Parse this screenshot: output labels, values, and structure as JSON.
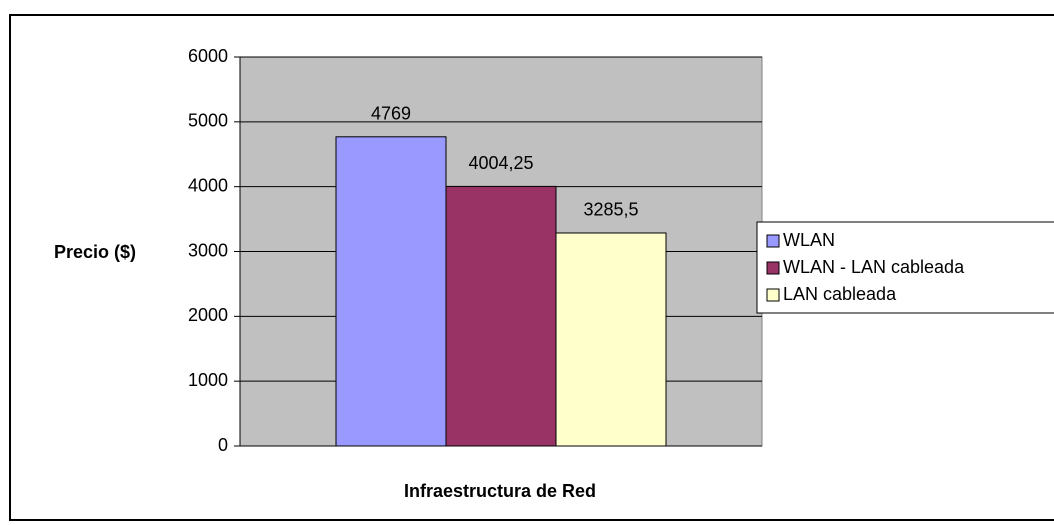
{
  "chart_data": {
    "type": "bar",
    "x_label": "Infraestructura de Red",
    "y_label": "Precio ($)",
    "categories": [
      null
    ],
    "series": [
      {
        "name": "WLAN",
        "color": "#9999ff",
        "values": [
          4769
        ]
      },
      {
        "name": "WLAN - LAN cableada",
        "color": "#993366",
        "values": [
          4004.25
        ],
        "value_labels": [
          "4004,25"
        ]
      },
      {
        "name": "LAN cableada",
        "color": "#ffffcc",
        "values": [
          3285.5
        ],
        "value_labels": [
          "3285,5"
        ]
      }
    ],
    "ylim": [
      0,
      6000
    ],
    "yticks": [
      0,
      1000,
      2000,
      3000,
      4000,
      5000,
      6000
    ],
    "grid": true,
    "legend": "right",
    "plot_background": "#c0c0c0"
  }
}
